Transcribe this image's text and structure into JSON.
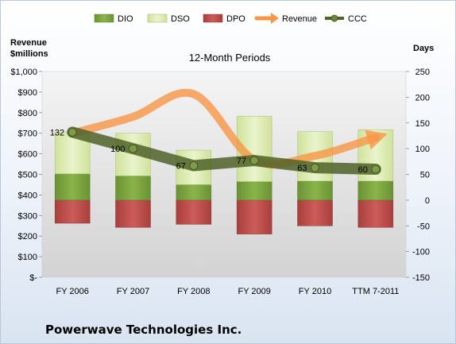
{
  "chart_data": {
    "type": "bar",
    "title": "12-Month Periods",
    "company": "Powerwave Technologies Inc.",
    "left_axis_title_line1": "Revenue",
    "left_axis_title_line2": "$millions",
    "right_axis_title": "Days",
    "categories": [
      "FY 2006",
      "FY 2007",
      "FY 2008",
      "FY 2009",
      "FY 2010",
      "TTM 7-2011"
    ],
    "left_ylim": [
      0,
      1000
    ],
    "right_ylim": [
      -150,
      250
    ],
    "left_ticks": [
      "$-",
      "$100",
      "$200",
      "$300",
      "$400",
      "$500",
      "$600",
      "$700",
      "$800",
      "$900",
      "$1,000"
    ],
    "right_ticks": [
      "-150",
      "-100",
      "-50",
      "0",
      "50",
      "100",
      "150",
      "200",
      "250"
    ],
    "legend": [
      "DIO",
      "DSO",
      "DPO",
      "Revenue",
      "CCC"
    ],
    "colors": {
      "DIO": "#77a03b",
      "DSO": "#dcebb3",
      "DPO": "#c0504d",
      "Revenue": "#f79646",
      "CCC": "#4f6228"
    },
    "series": [
      {
        "name": "DIO",
        "values": [
          51,
          47,
          30,
          36,
          37,
          37
        ]
      },
      {
        "name": "DSO",
        "values": [
          81,
          83,
          67,
          127,
          96,
          100
        ]
      },
      {
        "name": "DPO",
        "values": [
          -45,
          -53,
          -47,
          -66,
          -50,
          -53
        ]
      },
      {
        "name": "Revenue",
        "values": [
          700,
          780,
          890,
          570,
          590,
          680
        ]
      },
      {
        "name": "CCC",
        "values": [
          132,
          100,
          67,
          77,
          63,
          60
        ]
      }
    ],
    "ccc_labels": [
      "132",
      "100",
      "67",
      "77",
      "63",
      "60"
    ]
  }
}
